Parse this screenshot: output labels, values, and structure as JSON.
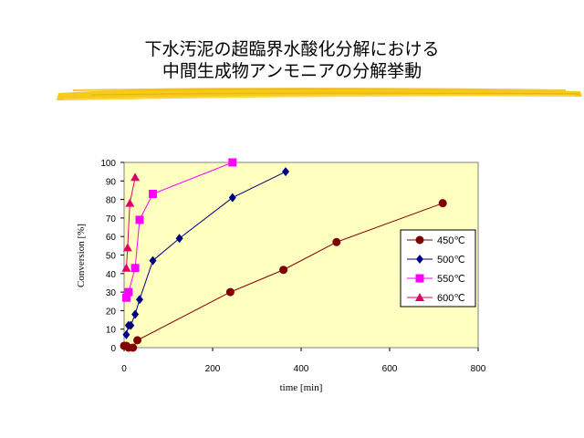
{
  "slide": {
    "title_line1": "下水汚泥の超臨界水酸化分解における",
    "title_line2": "中間生成物アンモニアの分解挙動",
    "accent_color": "#f5c400"
  },
  "chart_data": {
    "type": "scatter",
    "xlabel": "time [min]",
    "ylabel": "Conversion [%]",
    "xlim": [
      0,
      800
    ],
    "ylim": [
      0,
      100
    ],
    "xticks": [
      0,
      200,
      400,
      600,
      800
    ],
    "yticks": [
      0,
      10,
      20,
      30,
      40,
      50,
      60,
      70,
      80,
      90,
      100
    ],
    "plot_background": "#ffffc0",
    "grid": false,
    "legend_position": "right",
    "series": [
      {
        "name": "450℃",
        "color": "#800000",
        "marker": "circle",
        "x": [
          0,
          5,
          10,
          20,
          30,
          240,
          360,
          480,
          720
        ],
        "y": [
          1,
          1,
          0,
          0,
          4,
          30,
          42,
          57,
          78
        ]
      },
      {
        "name": "500℃",
        "color": "#000080",
        "marker": "diamond",
        "x": [
          5,
          10,
          15,
          25,
          35,
          65,
          125,
          245,
          365
        ],
        "y": [
          7,
          12,
          12,
          18,
          26,
          47,
          59,
          81,
          95
        ]
      },
      {
        "name": "550℃",
        "color": "#ff00ff",
        "marker": "square",
        "x": [
          5,
          10,
          25,
          35,
          65,
          245
        ],
        "y": [
          27,
          30,
          43,
          69,
          83,
          100
        ]
      },
      {
        "name": "600℃",
        "color": "#e0006a",
        "marker": "triangle",
        "x": [
          5,
          8,
          13,
          25
        ],
        "y": [
          43,
          54,
          78,
          92
        ]
      }
    ]
  }
}
